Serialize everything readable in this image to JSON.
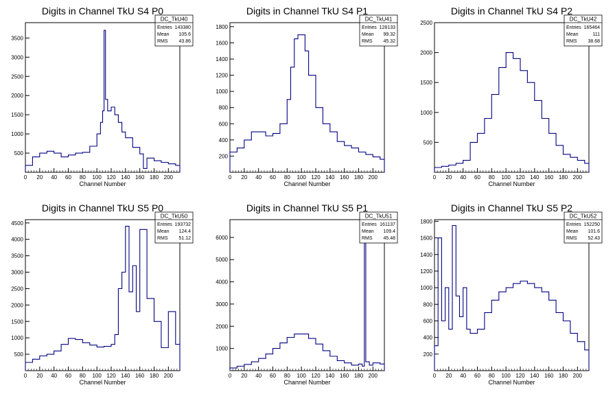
{
  "chart_data": [
    {
      "type": "histogram",
      "title": "Digits in Channel TkU S4 P0",
      "xlabel": "Channel Number",
      "xlim": [
        0,
        216
      ],
      "ylim": [
        0,
        3900
      ],
      "xticks": [
        0,
        20,
        40,
        60,
        80,
        100,
        120,
        140,
        160,
        180,
        200
      ],
      "yticks": [
        500,
        1000,
        1500,
        2000,
        2500,
        3000,
        3500
      ],
      "stats": {
        "name": "DC_TkU40",
        "rows": [
          [
            "Entries",
            "143380"
          ],
          [
            "Mean",
            "105.6"
          ],
          [
            "RMS",
            "43.86"
          ]
        ]
      },
      "x": [
        0,
        10,
        20,
        30,
        40,
        50,
        60,
        70,
        80,
        90,
        100,
        105,
        108,
        110,
        112,
        115,
        120,
        125,
        130,
        135,
        140,
        150,
        160,
        165,
        170,
        180,
        190,
        200,
        210,
        216
      ],
      "values": [
        180,
        400,
        500,
        550,
        500,
        400,
        450,
        500,
        520,
        680,
        1000,
        1300,
        1600,
        3700,
        1900,
        1600,
        1700,
        1500,
        1300,
        1050,
        900,
        650,
        480,
        100,
        370,
        300,
        260,
        220,
        180,
        100
      ]
    },
    {
      "type": "histogram",
      "title": "Digits in Channel TkU S4 P1",
      "xlabel": "Channel Number",
      "xlim": [
        0,
        216
      ],
      "ylim": [
        0,
        1850
      ],
      "xticks": [
        0,
        20,
        40,
        60,
        80,
        100,
        120,
        140,
        160,
        180,
        200
      ],
      "yticks": [
        200,
        400,
        600,
        800,
        1000,
        1200,
        1400,
        1600,
        1800
      ],
      "stats": {
        "name": "DC_TkU41",
        "rows": [
          [
            "Entries",
            "128133"
          ],
          [
            "Mean",
            "99.32"
          ],
          [
            "RMS",
            "45.32"
          ]
        ]
      },
      "x": [
        0,
        10,
        20,
        30,
        40,
        50,
        60,
        70,
        80,
        85,
        90,
        95,
        100,
        105,
        110,
        120,
        130,
        140,
        150,
        160,
        170,
        180,
        190,
        200,
        210,
        216
      ],
      "values": [
        250,
        300,
        400,
        500,
        500,
        450,
        480,
        600,
        900,
        1300,
        1650,
        1700,
        1700,
        1500,
        1200,
        800,
        600,
        500,
        380,
        330,
        300,
        250,
        220,
        190,
        160,
        120
      ]
    },
    {
      "type": "histogram",
      "title": "Digits in Channel TkU S4 P2",
      "xlabel": "Channel Number",
      "xlim": [
        0,
        216
      ],
      "ylim": [
        0,
        2500
      ],
      "xticks": [
        0,
        20,
        40,
        60,
        80,
        100,
        120,
        140,
        160,
        180,
        200
      ],
      "yticks": [
        500,
        1000,
        1500,
        2000,
        2500
      ],
      "stats": {
        "name": "DC_TkU42",
        "rows": [
          [
            "Entries",
            "165464"
          ],
          [
            "Mean",
            "111"
          ],
          [
            "RMS",
            "38.68"
          ]
        ]
      },
      "x": [
        0,
        10,
        20,
        30,
        40,
        50,
        60,
        70,
        80,
        90,
        100,
        110,
        120,
        130,
        140,
        150,
        160,
        170,
        180,
        190,
        200,
        210,
        216
      ],
      "values": [
        80,
        100,
        120,
        150,
        200,
        500,
        650,
        900,
        1300,
        1750,
        2000,
        1900,
        1700,
        1500,
        1200,
        900,
        650,
        450,
        300,
        250,
        200,
        150,
        80
      ]
    },
    {
      "type": "histogram",
      "title": "Digits in Channel TkU S5 P0",
      "xlabel": "Channel Number",
      "xlim": [
        0,
        216
      ],
      "ylim": [
        0,
        4600
      ],
      "xticks": [
        0,
        20,
        40,
        60,
        80,
        100,
        120,
        140,
        160,
        180,
        200
      ],
      "yticks": [
        500,
        1000,
        1500,
        2000,
        2500,
        3000,
        3500,
        4000,
        4500
      ],
      "stats": {
        "name": "DC_TkU50",
        "rows": [
          [
            "Entries",
            "193732"
          ],
          [
            "Mean",
            "124.4"
          ],
          [
            "RMS",
            "51.12"
          ]
        ]
      },
      "x": [
        0,
        10,
        20,
        30,
        40,
        50,
        60,
        70,
        80,
        90,
        100,
        110,
        120,
        125,
        130,
        135,
        140,
        145,
        150,
        155,
        160,
        170,
        180,
        190,
        200,
        210,
        216
      ],
      "values": [
        250,
        350,
        450,
        500,
        600,
        800,
        980,
        950,
        850,
        780,
        720,
        740,
        800,
        1100,
        2500,
        3000,
        4400,
        2400,
        3200,
        1800,
        4300,
        2200,
        1500,
        700,
        1800,
        800,
        1000
      ]
    },
    {
      "type": "histogram",
      "title": "Digits in Channel TkU S5 P1",
      "xlabel": "Channel Number",
      "xlim": [
        0,
        216
      ],
      "ylim": [
        0,
        6800
      ],
      "xticks": [
        0,
        20,
        40,
        60,
        80,
        100,
        120,
        140,
        160,
        180,
        200
      ],
      "yticks": [
        1000,
        2000,
        3000,
        4000,
        5000,
        6000
      ],
      "stats": {
        "name": "DC_TkU51",
        "rows": [
          [
            "Entries",
            "161137"
          ],
          [
            "Mean",
            "109.4"
          ],
          [
            "RMS",
            "45.48"
          ]
        ]
      },
      "x": [
        0,
        10,
        20,
        30,
        40,
        50,
        60,
        70,
        80,
        90,
        100,
        110,
        120,
        130,
        140,
        150,
        160,
        170,
        180,
        185,
        188,
        190,
        195,
        200,
        210,
        216
      ],
      "values": [
        120,
        200,
        280,
        400,
        550,
        750,
        1000,
        1250,
        1500,
        1650,
        1650,
        1450,
        1200,
        900,
        650,
        450,
        350,
        250,
        300,
        200,
        6500,
        400,
        250,
        350,
        300,
        150
      ]
    },
    {
      "type": "histogram",
      "title": "Digits in Channel TkU S5 P2",
      "xlabel": "Channel Number",
      "xlim": [
        0,
        216
      ],
      "ylim": [
        0,
        1820
      ],
      "xticks": [
        0,
        20,
        40,
        60,
        80,
        100,
        120,
        140,
        160,
        180,
        200
      ],
      "yticks": [
        200,
        400,
        600,
        800,
        1000,
        1200,
        1400,
        1600,
        1800
      ],
      "stats": {
        "name": "DC_TkU52",
        "rows": [
          [
            "Entries",
            "152250"
          ],
          [
            "Mean",
            "101.6"
          ],
          [
            "RMS",
            "52.43"
          ]
        ]
      },
      "x": [
        0,
        5,
        10,
        15,
        20,
        25,
        30,
        35,
        40,
        45,
        50,
        60,
        70,
        80,
        90,
        100,
        110,
        120,
        130,
        140,
        150,
        160,
        170,
        180,
        190,
        200,
        210,
        216
      ],
      "values": [
        300,
        1600,
        600,
        1000,
        500,
        1750,
        900,
        650,
        1000,
        500,
        450,
        500,
        700,
        850,
        950,
        1000,
        1050,
        1080,
        1050,
        1000,
        950,
        850,
        700,
        600,
        450,
        350,
        250,
        150
      ]
    }
  ]
}
